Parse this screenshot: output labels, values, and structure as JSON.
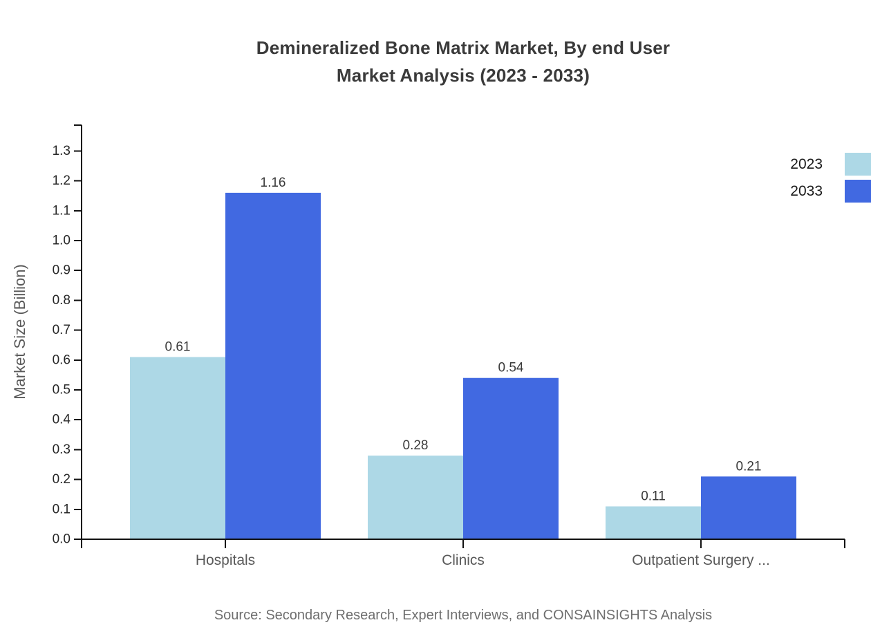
{
  "title": {
    "line1": "Demineralized Bone Matrix Market, By end User",
    "line2": "Market Analysis (2023 - 2033)"
  },
  "source": "Source: Secondary Research, Expert Interviews, and CONSAINSIGHTS Analysis",
  "legend": [
    {
      "label": "2023",
      "color": "#ADD8E6"
    },
    {
      "label": "2033",
      "color": "#4169E1"
    }
  ],
  "colors": {
    "series_2023": "#ADD8E6",
    "series_2033": "#4169E1",
    "axis": "#111111",
    "tick_label": "#262626",
    "category_label": "#595959",
    "value_label": "#3a3a3a",
    "axis_title": "#595959"
  },
  "chart_data": {
    "type": "bar",
    "title": "Demineralized Bone Matrix Market, By end User Market Analysis (2023 - 2033)",
    "categories": [
      "Hospitals",
      "Clinics",
      "Outpatient Surgery ..."
    ],
    "series": [
      {
        "name": "2023",
        "color": "#ADD8E6",
        "values": [
          0.61,
          0.28,
          0.11
        ],
        "labels": [
          "0.61",
          "0.28",
          "0.11"
        ]
      },
      {
        "name": "2033",
        "color": "#4169E1",
        "values": [
          1.16,
          0.54,
          0.21
        ],
        "labels": [
          "1.16",
          "0.54",
          "0.21"
        ]
      }
    ],
    "xlabel": "",
    "ylabel": "Market Size (Billion)",
    "ylim": [
      0.0,
      1.35
    ],
    "yticks": [
      "0.0",
      "0.1",
      "0.2",
      "0.3",
      "0.4",
      "0.5",
      "0.6",
      "0.7",
      "0.8",
      "0.9",
      "1.0",
      "1.1",
      "1.2",
      "1.3"
    ],
    "grid": false,
    "legend_position": "upper-right-outside"
  }
}
